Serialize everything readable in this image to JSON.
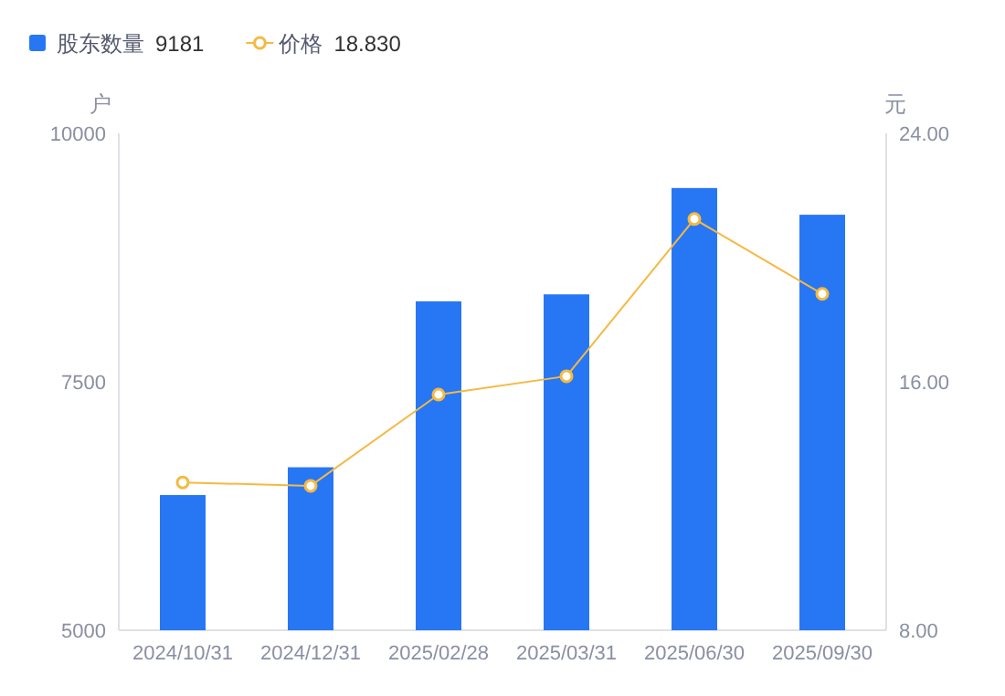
{
  "chart_data": {
    "type": "bar",
    "categories": [
      "2024/10/31",
      "2024/12/31",
      "2025/02/28",
      "2025/03/31",
      "2025/06/30",
      "2025/09/30"
    ],
    "series": [
      {
        "name": "股东数量",
        "color": "#2777f4",
        "values": [
          6360,
          6640,
          8310,
          8380,
          9450,
          9181
        ]
      },
      {
        "name": "价格",
        "type": "line",
        "axis": "y2",
        "color": "#f5b942",
        "marker": "circle",
        "values": [
          12.76,
          12.65,
          15.59,
          16.18,
          21.24,
          18.83
        ]
      }
    ],
    "annotations": [
      "9181",
      "18.830"
    ],
    "ylabel": "户",
    "y2label": "元",
    "ylim": [
      5000,
      10000
    ],
    "yticks": [
      5000,
      7500,
      10000
    ],
    "y2lim": [
      8,
      24
    ],
    "y2ticks": [
      {
        "value": 8,
        "label": "8.00"
      },
      {
        "value": 16,
        "label": "16.00"
      },
      {
        "value": 24,
        "label": "24.00"
      }
    ],
    "legend": "top left",
    "grid": false
  }
}
